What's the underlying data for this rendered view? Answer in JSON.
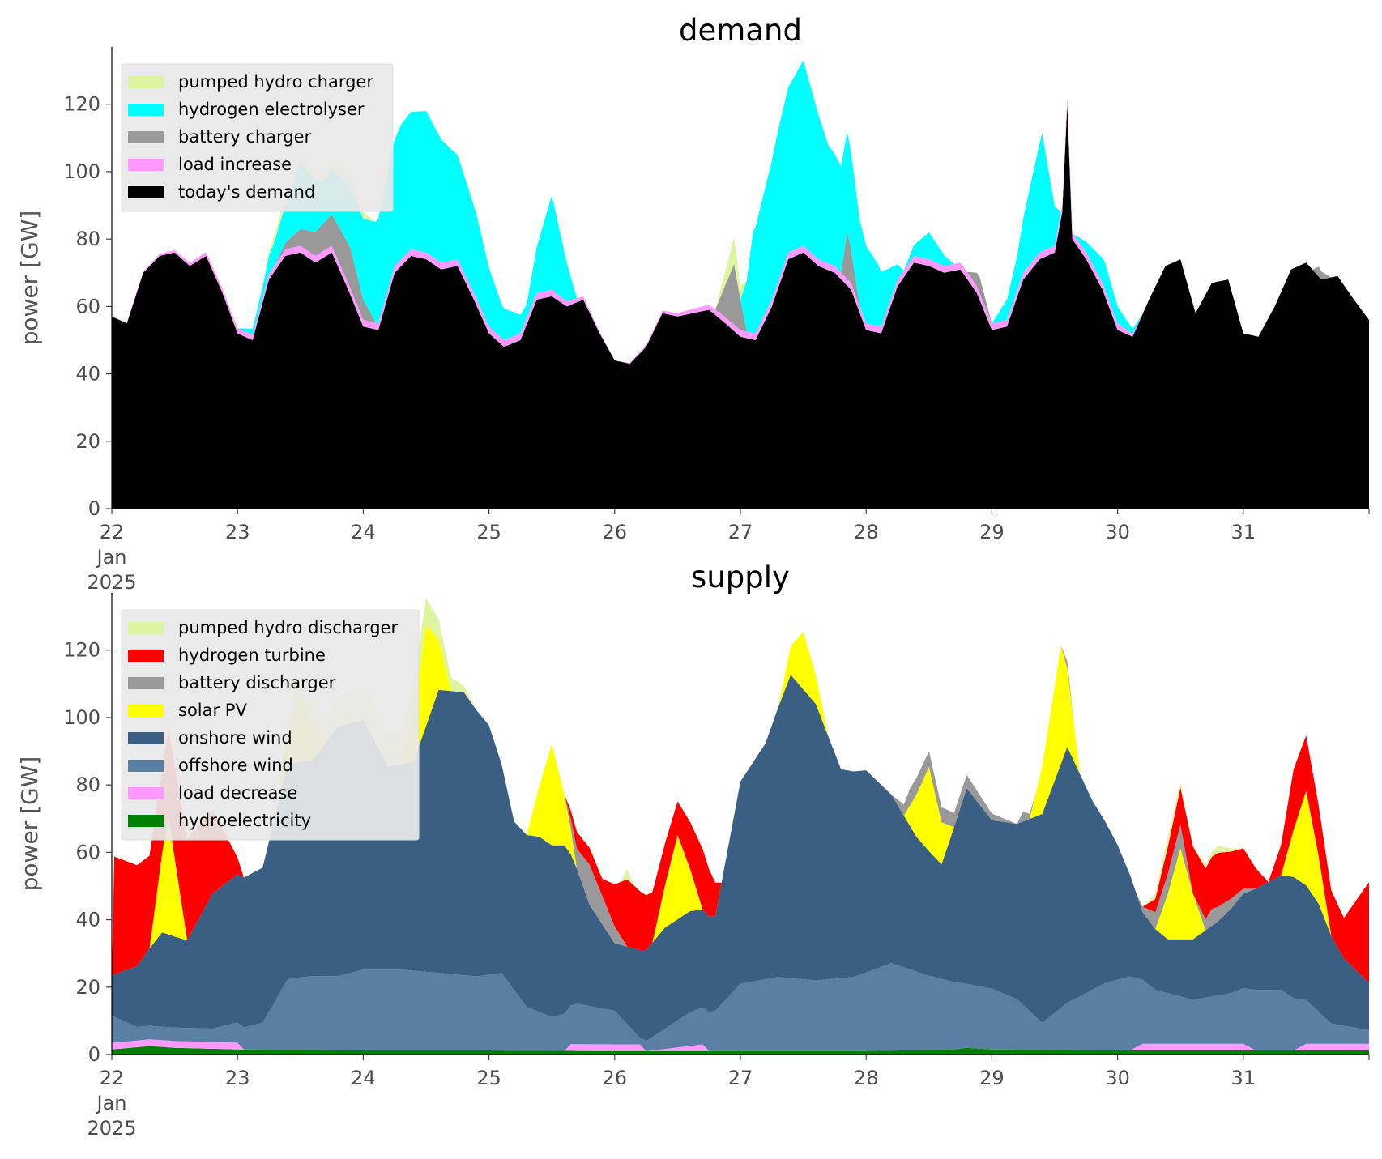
{
  "chart_data": [
    {
      "type": "area",
      "title": "demand",
      "ylabel": "power [GW]",
      "xlabel": "",
      "ylim": [
        0,
        137
      ],
      "xlim": [
        22,
        32
      ],
      "x_unit": "day of Jan 2025 (fractional)",
      "yticks": [
        0,
        20,
        40,
        60,
        80,
        100,
        120
      ],
      "xtick_labels": [
        {
          "x": 22,
          "lines": [
            "22",
            "Jan",
            "2025"
          ]
        },
        {
          "x": 23,
          "lines": [
            "23"
          ]
        },
        {
          "x": 24,
          "lines": [
            "24"
          ]
        },
        {
          "x": 25,
          "lines": [
            "25"
          ]
        },
        {
          "x": 26,
          "lines": [
            "26"
          ]
        },
        {
          "x": 27,
          "lines": [
            "27"
          ]
        },
        {
          "x": 28,
          "lines": [
            "28"
          ]
        },
        {
          "x": 29,
          "lines": [
            "29"
          ]
        },
        {
          "x": 30,
          "lines": [
            "30"
          ]
        },
        {
          "x": 31,
          "lines": [
            "31"
          ]
        }
      ],
      "legend_position": "upper-left",
      "legend": [
        "pumped hydro charger",
        "hydrogen electrolyser",
        "battery charger",
        "load increase",
        "today's demand"
      ],
      "stack_order": [
        "today's demand",
        "load increase",
        "battery charger",
        "hydrogen electrolyser",
        "pumped hydro charger"
      ],
      "series": [
        {
          "name": "today's demand",
          "color": "#000000",
          "x": [
            22,
            22.12,
            22.25,
            22.38,
            22.5,
            22.62,
            22.75,
            22.88,
            23,
            23.12,
            23.25,
            23.38,
            23.5,
            23.62,
            23.75,
            23.88,
            24,
            24.12,
            24.25,
            24.38,
            24.5,
            24.62,
            24.75,
            24.88,
            25,
            25.12,
            25.25,
            25.38,
            25.5,
            25.62,
            25.75,
            25.88,
            26,
            26.12,
            26.25,
            26.38,
            26.5,
            26.62,
            26.75,
            26.88,
            27,
            27.12,
            27.25,
            27.38,
            27.5,
            27.62,
            27.75,
            27.88,
            28,
            28.12,
            28.25,
            28.38,
            28.5,
            28.62,
            28.75,
            28.88,
            29,
            29.12,
            29.25,
            29.38,
            29.5,
            29.56,
            29.6,
            29.64,
            29.75,
            29.88,
            30,
            30.12,
            30.25,
            30.38,
            30.5,
            30.62,
            30.75,
            30.88,
            31,
            31.12,
            31.25,
            31.38,
            31.5,
            31.62,
            31.75,
            31.88,
            32
          ],
          "values": [
            57,
            55,
            70,
            75,
            76,
            72,
            75,
            64,
            52,
            50,
            68,
            75,
            76,
            73,
            76,
            65,
            54,
            53,
            70,
            75,
            74,
            71,
            72,
            62,
            52,
            48,
            50,
            62,
            63,
            60,
            62,
            52,
            44,
            43,
            48,
            58,
            57,
            58,
            59,
            55,
            51,
            50,
            60,
            74,
            76,
            72,
            70,
            65,
            53,
            52,
            66,
            73,
            72,
            70,
            71,
            64,
            53,
            54,
            68,
            74,
            76,
            88,
            120,
            80,
            74,
            65,
            53,
            51,
            62,
            72,
            74,
            58,
            67,
            68,
            52,
            51,
            60,
            71,
            73,
            68,
            69,
            62,
            56
          ]
        },
        {
          "name": "load increase",
          "color": "#ff99ff",
          "x": [
            22,
            23,
            23.5,
            24,
            24.5,
            25,
            25.5,
            26,
            27,
            27.5,
            28,
            28.5,
            29,
            29.5,
            30,
            30.2,
            32
          ],
          "values": [
            0,
            1.5,
            2,
            2,
            2,
            2,
            2,
            0,
            2,
            2,
            2,
            2,
            2,
            2,
            2,
            0,
            0
          ]
        },
        {
          "name": "battery charger",
          "color": "#999999",
          "x": [
            22,
            23.3,
            23.5,
            23.9,
            24.1,
            26.8,
            26.95,
            27.05,
            27.8,
            27.85,
            27.95,
            28.8,
            28.9,
            29.0,
            31.55,
            31.6,
            31.7,
            32
          ],
          "values": [
            0,
            0,
            5,
            12,
            0,
            0,
            18,
            0,
            0,
            14,
            0,
            0,
            5,
            0,
            0,
            3,
            0,
            0
          ]
        },
        {
          "name": "hydrogen electrolyser",
          "color": "#00ffff",
          "x": [
            22,
            23.0,
            23.2,
            23.4,
            23.5,
            23.7,
            23.9,
            24.1,
            24.3,
            24.5,
            24.7,
            24.9,
            25.1,
            25.3,
            25.5,
            25.7,
            27.0,
            27.1,
            27.3,
            27.5,
            27.7,
            27.9,
            28.1,
            28.3,
            28.5,
            28.7,
            29.0,
            29.2,
            29.4,
            29.55,
            29.65,
            29.9,
            30.1,
            30.2,
            32
          ],
          "values": [
            0,
            0,
            3,
            12,
            20,
            12,
            18,
            30,
            40,
            42,
            33,
            25,
            10,
            4,
            28,
            0,
            0,
            30,
            45,
            55,
            35,
            28,
            18,
            0,
            8,
            0,
            0,
            10,
            35,
            0,
            0,
            8,
            2,
            0,
            0
          ]
        },
        {
          "name": "pumped hydro charger",
          "color": "#ddf5a1",
          "x": [
            22,
            23.1,
            23.3,
            23.5,
            23.7,
            23.9,
            24.1,
            26.8,
            26.95,
            27.05,
            32
          ],
          "values": [
            0,
            0,
            2,
            3,
            2,
            4,
            0,
            0,
            8,
            0,
            0
          ]
        }
      ]
    },
    {
      "type": "area",
      "title": "supply",
      "ylabel": "power [GW]",
      "xlabel": "",
      "ylim": [
        0,
        137
      ],
      "xlim": [
        22,
        32
      ],
      "x_unit": "day of Jan 2025 (fractional)",
      "yticks": [
        0,
        20,
        40,
        60,
        80,
        100,
        120
      ],
      "xtick_labels": [
        {
          "x": 22,
          "lines": [
            "22",
            "Jan",
            "2025"
          ]
        },
        {
          "x": 23,
          "lines": [
            "23"
          ]
        },
        {
          "x": 24,
          "lines": [
            "24"
          ]
        },
        {
          "x": 25,
          "lines": [
            "25"
          ]
        },
        {
          "x": 26,
          "lines": [
            "26"
          ]
        },
        {
          "x": 27,
          "lines": [
            "27"
          ]
        },
        {
          "x": 28,
          "lines": [
            "28"
          ]
        },
        {
          "x": 29,
          "lines": [
            "29"
          ]
        },
        {
          "x": 30,
          "lines": [
            "30"
          ]
        },
        {
          "x": 31,
          "lines": [
            "31"
          ]
        }
      ],
      "legend_position": "upper-left",
      "legend": [
        "pumped hydro discharger",
        "hydrogen turbine",
        "battery discharger",
        "solar PV",
        "onshore wind",
        "offshore wind",
        "load decrease",
        "hydroelectricity"
      ],
      "stack_order": [
        "hydroelectricity",
        "load decrease",
        "offshore wind",
        "onshore wind",
        "solar PV",
        "battery discharger",
        "hydrogen turbine",
        "pumped hydro discharger"
      ],
      "series": [
        {
          "name": "hydroelectricity",
          "color": "#008000",
          "x": [
            22,
            22.3,
            22.5,
            23,
            24,
            25,
            26,
            27,
            28,
            28.7,
            28.8,
            29,
            30,
            31,
            32
          ],
          "values": [
            1.5,
            2.5,
            2,
            1.5,
            1.2,
            1.2,
            1,
            1,
            1,
            1.5,
            2,
            1.5,
            1.2,
            1.2,
            1.2
          ]
        },
        {
          "name": "load decrease",
          "color": "#ff99ff",
          "x": [
            22,
            22.3,
            23,
            23.05,
            25.6,
            25.65,
            26.2,
            26.25,
            26.7,
            26.75,
            30.1,
            30.2,
            31.0,
            31.1,
            31.4,
            31.5,
            32
          ],
          "values": [
            2,
            2,
            2,
            0,
            0,
            2,
            2,
            0,
            2,
            0,
            0,
            2,
            2,
            0,
            0,
            2,
            2
          ]
        },
        {
          "name": "offshore wind",
          "color": "#5a7fa3",
          "x": [
            22,
            22.2,
            22.5,
            22.8,
            23,
            23.2,
            23.4,
            23.6,
            23.8,
            24,
            24.3,
            24.6,
            24.9,
            25.1,
            25.3,
            25.5,
            25.7,
            26,
            26.2,
            26.4,
            26.6,
            26.8,
            27,
            27.3,
            27.6,
            27.9,
            28.2,
            28.5,
            28.8,
            29,
            29.2,
            29.4,
            29.6,
            29.9,
            30.1,
            30.3,
            30.6,
            30.9,
            31.1,
            31.3,
            31.5,
            31.7,
            32
          ],
          "values": [
            8,
            4,
            4,
            4,
            6,
            8,
            21,
            22,
            22,
            24,
            24,
            23,
            22,
            23,
            13,
            10,
            12,
            10,
            2,
            6,
            10,
            12,
            20,
            22,
            21,
            22,
            26,
            22,
            19,
            18,
            15,
            8,
            14,
            20,
            22,
            16,
            13,
            15,
            18,
            18,
            13,
            6,
            4
          ]
        },
        {
          "name": "onshore wind",
          "color": "#3b5f82",
          "x": [
            22,
            22.2,
            22.4,
            22.6,
            22.8,
            23,
            23.2,
            23.4,
            23.6,
            23.8,
            24,
            24.2,
            24.4,
            24.6,
            24.8,
            25,
            25.2,
            25.4,
            25.6,
            25.8,
            26,
            26.2,
            26.4,
            26.6,
            26.8,
            27,
            27.2,
            27.4,
            27.6,
            27.8,
            28,
            28.2,
            28.4,
            28.6,
            28.8,
            29,
            29.2,
            29.4,
            29.6,
            29.8,
            30,
            30.2,
            30.4,
            30.6,
            30.8,
            31,
            31.2,
            31.4,
            31.6,
            31.8,
            32
          ],
          "values": [
            12,
            18,
            28,
            26,
            40,
            44,
            46,
            64,
            64,
            74,
            74,
            60,
            62,
            84,
            84,
            74,
            50,
            52,
            50,
            30,
            20,
            26,
            30,
            30,
            28,
            60,
            70,
            90,
            82,
            62,
            60,
            50,
            40,
            34,
            58,
            50,
            52,
            62,
            76,
            56,
            40,
            20,
            16,
            18,
            22,
            28,
            32,
            36,
            32,
            20,
            14
          ]
        },
        {
          "name": "solar PV",
          "color": "#ffff00",
          "x": [
            22,
            22.3,
            22.45,
            22.6,
            22.8,
            23.3,
            23.5,
            23.7,
            24.3,
            24.5,
            24.7,
            25.3,
            25.5,
            25.7,
            26.3,
            26.5,
            26.7,
            27.3,
            27.5,
            27.7,
            28.3,
            28.5,
            28.7,
            29.3,
            29.55,
            29.7,
            30.3,
            30.5,
            30.7,
            31.3,
            31.5,
            31.7,
            32
          ],
          "values": [
            0,
            0,
            35,
            0,
            0,
            0,
            20,
            0,
            0,
            30,
            0,
            0,
            30,
            0,
            0,
            25,
            0,
            0,
            17,
            0,
            0,
            25,
            0,
            0,
            35,
            0,
            0,
            27,
            0,
            0,
            28,
            0,
            0
          ]
        },
        {
          "name": "battery discharger",
          "color": "#999999",
          "x": [
            22,
            25.6,
            25.8,
            26.0,
            26.1,
            28.2,
            28.35,
            28.8,
            29.2,
            29.25,
            29.35,
            29.55,
            29.6,
            29.65,
            30.15,
            30.3,
            30.5,
            30.6,
            30.75,
            30.9,
            31.1,
            32
          ],
          "values": [
            0,
            0,
            12,
            5,
            0,
            0,
            5,
            4,
            0,
            3,
            0,
            0,
            2,
            0,
            0,
            5,
            7,
            0,
            5,
            3,
            0,
            0
          ]
        },
        {
          "name": "hydrogen turbine",
          "color": "#ff0000",
          "x": [
            22,
            22.02,
            22.2,
            22.4,
            22.6,
            22.8,
            23.0,
            23.05,
            25.6,
            25.7,
            25.9,
            26.1,
            26.3,
            26.5,
            26.7,
            26.8,
            26.85,
            30.2,
            30.4,
            30.6,
            30.8,
            31.0,
            31.2,
            31.4,
            31.6,
            31.8,
            32
          ],
          "values": [
            0,
            35,
            30,
            25,
            30,
            25,
            5,
            0,
            0,
            5,
            5,
            20,
            15,
            10,
            18,
            10,
            0,
            0,
            8,
            14,
            16,
            12,
            0,
            18,
            15,
            12,
            30
          ]
        },
        {
          "name": "pumped hydro discharger",
          "color": "#ddf5a1",
          "x": [
            22,
            23.3,
            23.5,
            23.7,
            24.1,
            24.5,
            24.9,
            26.05,
            26.1,
            26.15,
            30.2,
            30.4,
            30.6,
            30.8,
            31.0,
            32
          ],
          "values": [
            0,
            0,
            6,
            8,
            10,
            8,
            0,
            0,
            3,
            0,
            0,
            3,
            0,
            2,
            0,
            0
          ]
        }
      ]
    }
  ]
}
